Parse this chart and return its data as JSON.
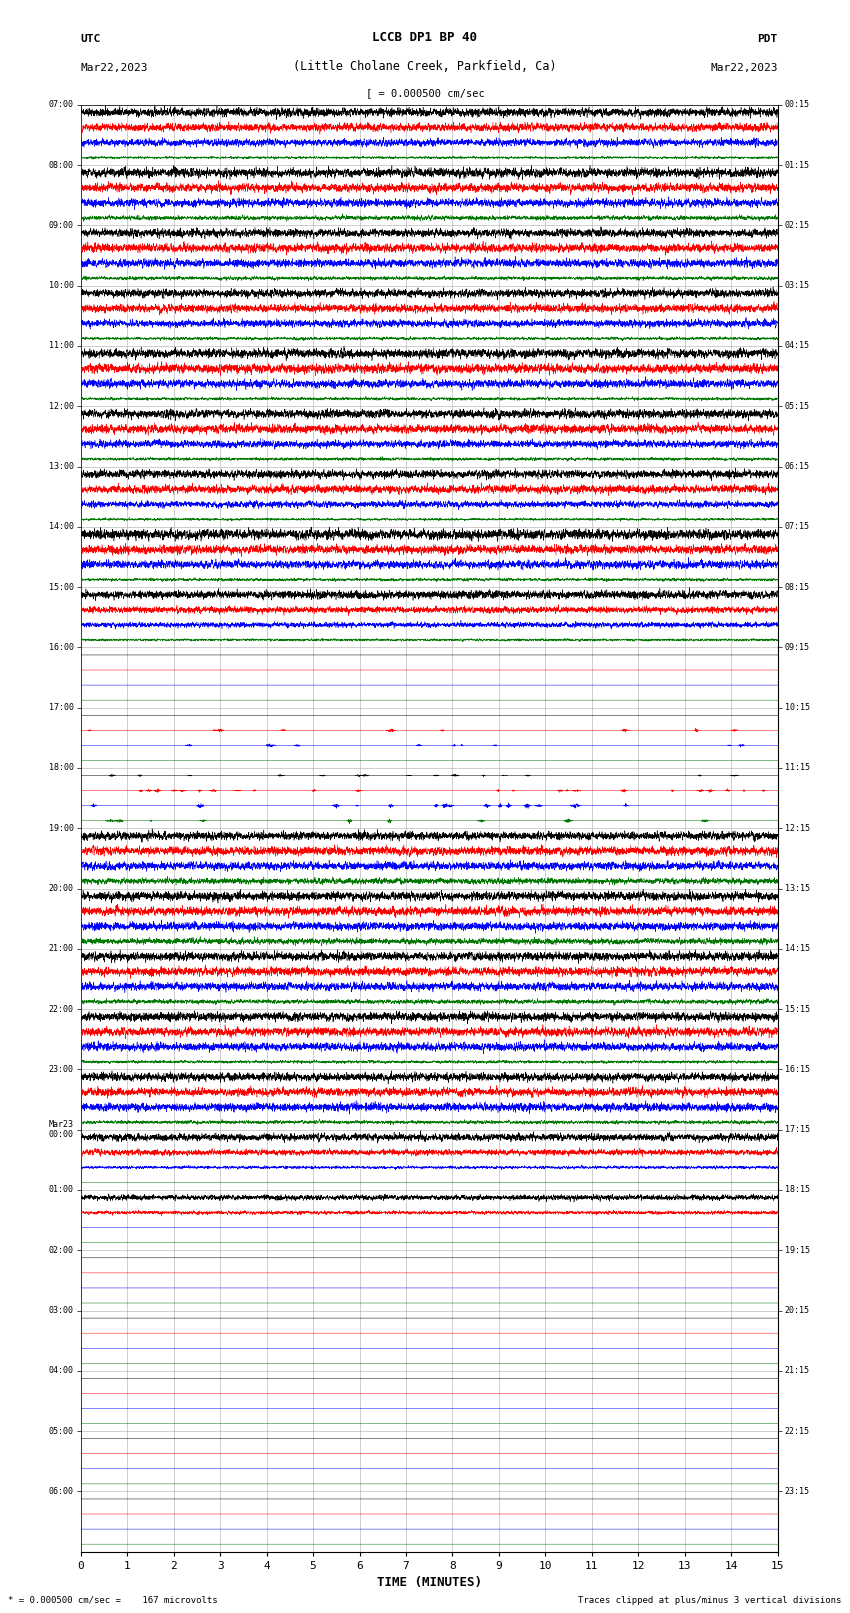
{
  "title_line1": "LCCB DP1 BP 40",
  "title_line2": "(Little Cholane Creek, Parkfield, Ca)",
  "scale_text": "= 0.000500 cm/sec",
  "left_label": "UTC",
  "left_date": "Mar22,2023",
  "right_label": "PDT",
  "right_date": "Mar22,2023",
  "bottom_label": "TIME (MINUTES)",
  "bottom_note": "* = 0.000500 cm/sec =    167 microvolts",
  "bottom_note2": "Traces clipped at plus/minus 3 vertical divisions",
  "xlabel_ticks": [
    0,
    1,
    2,
    3,
    4,
    5,
    6,
    7,
    8,
    9,
    10,
    11,
    12,
    13,
    14,
    15
  ],
  "left_time_labels": [
    "07:00",
    "08:00",
    "09:00",
    "10:00",
    "11:00",
    "12:00",
    "13:00",
    "14:00",
    "15:00",
    "16:00",
    "17:00",
    "18:00",
    "19:00",
    "20:00",
    "21:00",
    "22:00",
    "23:00",
    "Mar23\n00:00",
    "01:00",
    "02:00",
    "03:00",
    "04:00",
    "05:00",
    "06:00"
  ],
  "right_time_labels": [
    "00:15",
    "01:15",
    "02:15",
    "03:15",
    "04:15",
    "05:15",
    "06:15",
    "07:15",
    "08:15",
    "09:15",
    "10:15",
    "11:15",
    "12:15",
    "13:15",
    "14:15",
    "15:15",
    "16:15",
    "17:15",
    "18:15",
    "19:15",
    "20:15",
    "21:15",
    "22:15",
    "23:15"
  ],
  "n_rows": 24,
  "traces_per_row": 4,
  "colors": [
    "#000000",
    "#ff0000",
    "#0000ff",
    "#007700"
  ],
  "bg_color": "#ffffff",
  "grid_color": "#aaaaaa",
  "fig_width": 8.5,
  "fig_height": 16.13,
  "dpi": 100,
  "xmin": 0,
  "xmax": 15,
  "samples_per_row": 5400,
  "row_amplitudes": {
    "0": [
      0.3,
      0.28,
      0.25,
      0.08
    ],
    "1": [
      0.32,
      0.3,
      0.28,
      0.15
    ],
    "2": [
      0.28,
      0.3,
      0.28,
      0.12
    ],
    "3": [
      0.28,
      0.28,
      0.25,
      0.1
    ],
    "4": [
      0.32,
      0.32,
      0.28,
      0.1
    ],
    "5": [
      0.3,
      0.3,
      0.25,
      0.1
    ],
    "6": [
      0.28,
      0.28,
      0.22,
      0.08
    ],
    "7": [
      0.35,
      0.3,
      0.28,
      0.1
    ],
    "8": [
      0.28,
      0.22,
      0.18,
      0.08
    ],
    "9": [
      0.0,
      0.0,
      0.0,
      0.0
    ],
    "10": [
      0.0,
      0.12,
      0.1,
      0.0
    ],
    "11": [
      0.08,
      0.12,
      0.18,
      0.18
    ],
    "12": [
      0.28,
      0.3,
      0.28,
      0.2
    ],
    "13": [
      0.3,
      0.3,
      0.28,
      0.2
    ],
    "14": [
      0.3,
      0.3,
      0.28,
      0.15
    ],
    "15": [
      0.3,
      0.3,
      0.28,
      0.1
    ],
    "16": [
      0.28,
      0.28,
      0.28,
      0.12
    ],
    "17": [
      0.25,
      0.2,
      0.1,
      0.0
    ],
    "18": [
      0.18,
      0.12,
      0.0,
      0.0
    ],
    "19": [
      0.0,
      0.0,
      0.0,
      0.0
    ],
    "20": [
      0.0,
      0.0,
      0.0,
      0.0
    ],
    "21": [
      0.0,
      0.0,
      0.0,
      0.0
    ],
    "22": [
      0.0,
      0.0,
      0.0,
      0.0
    ],
    "23": [
      0.0,
      0.0,
      0.0,
      0.0
    ]
  }
}
